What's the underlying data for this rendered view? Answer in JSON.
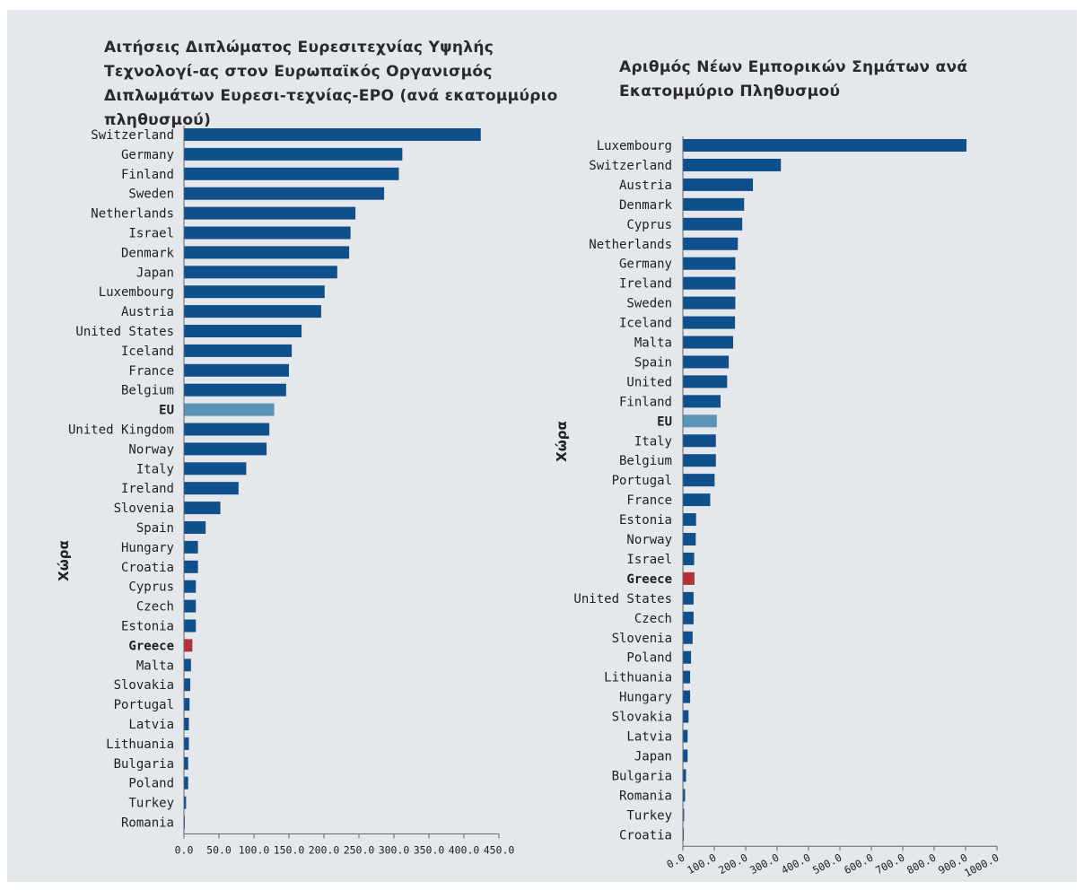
{
  "charts": [
    {
      "title": "Αιτήσεις Διπλώματος Ευρεσιτεχνίας Υψηλής Τεχνολογί-ας στον Ευρωπαϊκός Οργανισμός Διπλωμάτων Ευρεσι-τεχνίας-EPO (ανά εκατομμύριο πληθυσμού)",
      "ylabel": "Χώρα"
    },
    {
      "title": "Αριθμός Νέων Εμπορικών Σημάτων ανά Εκατομμύριο Πληθυσμού",
      "ylabel": "Χώρα"
    }
  ],
  "colors": {
    "bar": "#0f4f8c",
    "eu": "#5b93b6",
    "greece": "#b23239",
    "background": "#e4e7ec",
    "axis": "#666666"
  },
  "chart_data": [
    {
      "type": "bar",
      "orientation": "horizontal",
      "title": "Αιτήσεις Διπλώματος Ευρεσιτεχνίας Υψηλής Τεχνολογί-ας στον Ευρωπαϊκός Οργανισμός Διπλωμάτων Ευρεσι-τεχνίας-EPO (ανά εκατομμύριο πληθυσμού)",
      "ylabel": "Χώρα",
      "xlabel": "",
      "categories": [
        "Switzerland",
        "Germany",
        "Finland",
        "Sweden",
        "Netherlands",
        "Israel",
        "Denmark",
        "Japan",
        "Luxembourg",
        "Austria",
        "United States",
        "Iceland",
        "France",
        "Belgium",
        "EU",
        "United Kingdom",
        "Norway",
        "Italy",
        "Ireland",
        "Slovenia",
        "Spain",
        "Hungary",
        "Croatia",
        "Cyprus",
        "Czech",
        "Estonia",
        "Greece",
        "Malta",
        "Slovakia",
        "Portugal",
        "Latvia",
        "Lithuania",
        "Bulgaria",
        "Poland",
        "Turkey",
        "Romania"
      ],
      "values": [
        424,
        312,
        307,
        286,
        245,
        238,
        236,
        219,
        201,
        196,
        168,
        154,
        150,
        146,
        129,
        122,
        118,
        89,
        78,
        52,
        31,
        20,
        20,
        17,
        17,
        17,
        12,
        10,
        9,
        8,
        7,
        7,
        6,
        6,
        3,
        1
      ],
      "highlight": [
        "EU",
        "Greece"
      ],
      "xlim": [
        0,
        450
      ],
      "xticks": [
        "0.0",
        "50.0",
        "100.0",
        "150.0",
        "200.0",
        "250.0",
        "300.0",
        "350.0",
        "400.0",
        "450.0"
      ],
      "grid": false
    },
    {
      "type": "bar",
      "orientation": "horizontal",
      "title": "Αριθμός Νέων Εμπορικών Σημάτων ανά Εκατομμύριο Πληθυσμού",
      "ylabel": "Χώρα",
      "xlabel": "",
      "categories": [
        "Luxembourg",
        "Switzerland",
        "Austria",
        "Denmark",
        "Cyprus",
        "Netherlands",
        "Germany",
        "Ireland",
        "Sweden",
        "Iceland",
        "Malta",
        "Spain",
        "United",
        "Finland",
        "EU",
        "Italy",
        "Belgium",
        "Portugal",
        "France",
        "Estonia",
        "Norway",
        "Israel",
        "Greece",
        "United States",
        "Czech",
        "Slovenia",
        "Poland",
        "Lithuania",
        "Hungary",
        "Slovakia",
        "Latvia",
        "Japan",
        "Bulgaria",
        "Romania",
        "Turkey",
        "Croatia"
      ],
      "values": [
        903,
        312,
        223,
        195,
        189,
        175,
        167,
        167,
        167,
        166,
        160,
        146,
        141,
        120,
        108,
        105,
        105,
        101,
        87,
        42,
        41,
        36,
        37,
        34,
        34,
        31,
        26,
        23,
        23,
        18,
        15,
        15,
        10,
        7,
        4,
        3
      ],
      "highlight": [
        "EU",
        "Greece"
      ],
      "xlim": [
        0,
        1000
      ],
      "xticks": [
        "0.0",
        "100.0",
        "200.0",
        "300.0",
        "400.0",
        "500.0",
        "600.0",
        "700.0",
        "800.0",
        "900.0",
        "1000.0"
      ],
      "grid": false
    }
  ]
}
